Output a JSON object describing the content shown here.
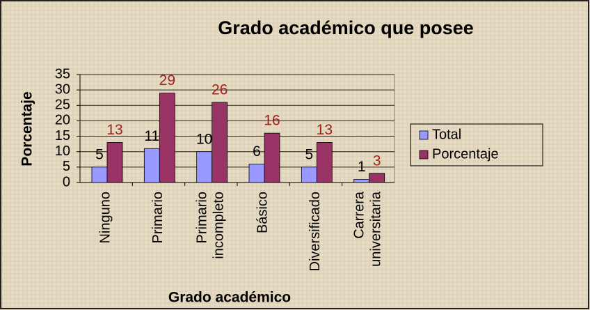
{
  "chart_data": {
    "type": "bar",
    "title": "Grado académico que posee",
    "x_label": "Grado académico",
    "y_label": "Porcentaje",
    "categories": [
      "Ninguno",
      "Primario",
      "Primario incompleto",
      "Básico",
      "Diversificado",
      "Carrera universitaria"
    ],
    "series": [
      {
        "name": "Total",
        "color": "#9999ff",
        "label_color": "#000000",
        "values": [
          5,
          11,
          10,
          6,
          5,
          1
        ]
      },
      {
        "name": "Porcentaje",
        "color": "#993366",
        "label_color": "#a0201e",
        "values": [
          13,
          29,
          26,
          16,
          13,
          3
        ]
      }
    ],
    "ylim": [
      0,
      35
    ],
    "yticks": [
      0,
      5,
      10,
      15,
      20,
      25,
      30,
      35
    ],
    "grid": true,
    "legend": "right"
  }
}
